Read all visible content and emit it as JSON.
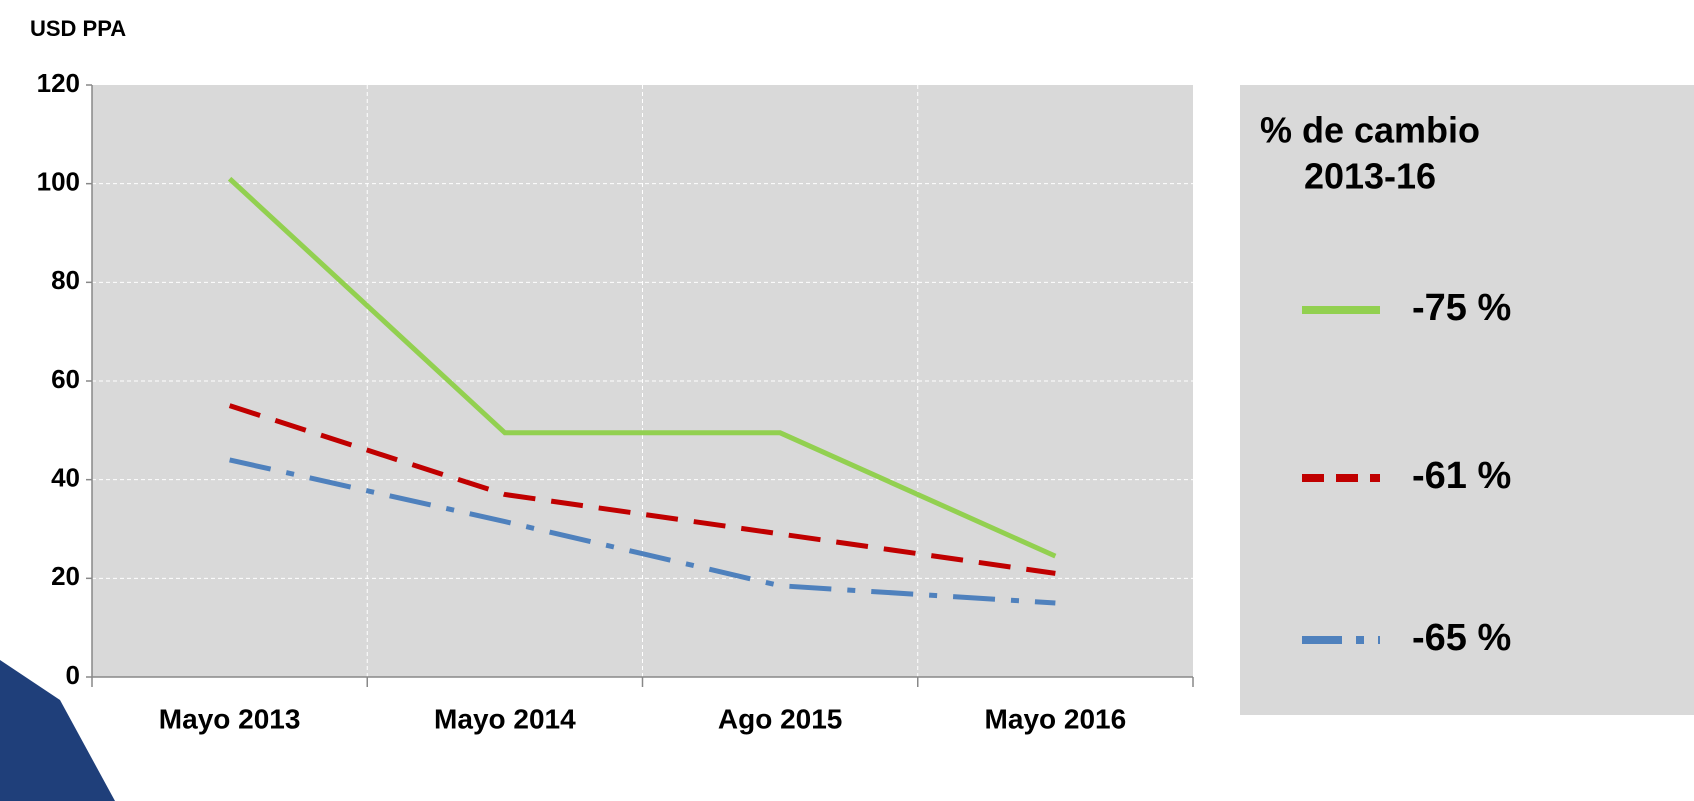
{
  "chart_data": {
    "type": "line",
    "y_label": "USD PPA",
    "categories": [
      "Mayo 2013",
      "Mayo 2014",
      "Ago 2015",
      "Mayo 2016"
    ],
    "series": [
      {
        "name": "-75 %",
        "color": "#92d050",
        "dash": "solid",
        "values": [
          101,
          49.5,
          49.5,
          24.5
        ]
      },
      {
        "name": "-61 %",
        "color": "#c00000",
        "dash": "dashed",
        "values": [
          55,
          37,
          29,
          21
        ]
      },
      {
        "name": "-65 %",
        "color": "#4f81bd",
        "dash": "dashdot",
        "values": [
          44,
          31.5,
          18.5,
          15
        ]
      }
    ],
    "ylim": [
      0,
      120
    ],
    "yticks": [
      0,
      20,
      40,
      60,
      80,
      100,
      120
    ],
    "grid": true,
    "legend_title": [
      "% de cambio",
      "2013-16"
    ],
    "legend": "right"
  }
}
